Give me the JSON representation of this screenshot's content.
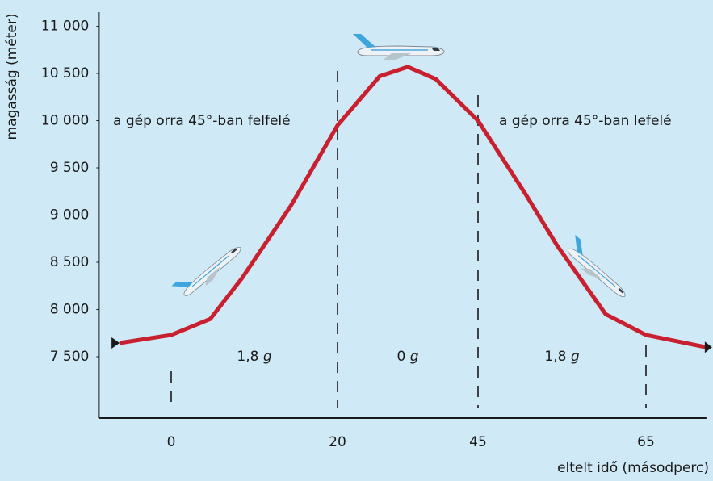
{
  "chart_data": {
    "type": "line",
    "x_label": "eltelt idő (másodperc)",
    "y_label": "magasság (méter)",
    "x": [
      -6.2,
      0,
      4.7,
      8.5,
      14.4,
      20,
      27.5,
      32.5,
      37.5,
      45,
      50.6,
      54.4,
      60.2,
      65,
      72.2
    ],
    "series": [
      {
        "color": "#c8202e",
        "values": [
          7645,
          7730,
          7900,
          8330,
          9100,
          9950,
          10470,
          10570,
          10440,
          10000,
          9230,
          8680,
          7950,
          7730,
          7600
        ]
      }
    ],
    "xlim": [
      -8.7,
      72.2
    ],
    "xticks": [
      0,
      20,
      45,
      65
    ],
    "ylim": [
      6850,
      11150
    ],
    "yticks": [
      {
        "value": 7500,
        "label": "7 500"
      },
      {
        "value": 8000,
        "label": "8 000"
      },
      {
        "value": 8500,
        "label": "8 500"
      },
      {
        "value": 9000,
        "label": "9 000"
      },
      {
        "value": 9500,
        "label": "9 500"
      },
      {
        "value": 10000,
        "label": "10 000"
      },
      {
        "value": 10500,
        "label": "10 500"
      },
      {
        "value": 11000,
        "label": "11 000"
      }
    ],
    "annotations": [
      "a gép orra 45°-ban felfelé",
      "a gép orra 45°-ban lefelé"
    ],
    "phases": [
      {
        "label": "1,8",
        "unit": "g"
      },
      {
        "label": "0",
        "unit": "g"
      },
      {
        "label": "1,8",
        "unit": "g"
      }
    ]
  }
}
